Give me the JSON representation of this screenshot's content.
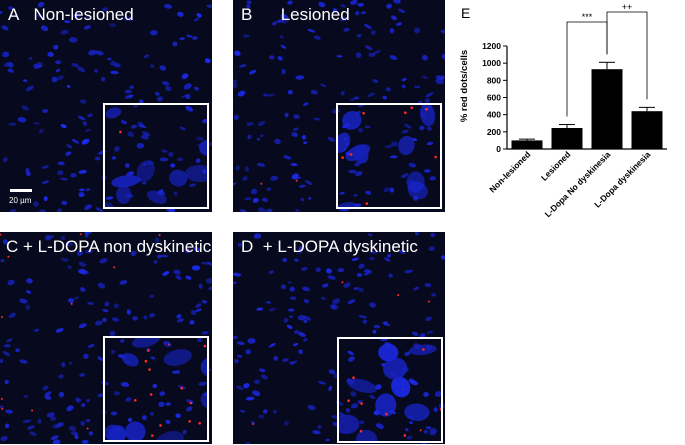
{
  "panels": [
    {
      "letter": "A",
      "title": "Non-lesioned"
    },
    {
      "letter": "B",
      "title": "Lesioned"
    },
    {
      "letter": "C",
      "title": "+ L-DOPA non dyskinetic"
    },
    {
      "letter": "D",
      "title": "+ L-DOPA dyskinetic"
    }
  ],
  "scale_bar": "20 µm",
  "chart_data": {
    "type": "bar",
    "panel_letter": "E",
    "categories": [
      "Non-lesioned",
      "Lesioned",
      "L-Dopa No dyskinesia",
      "L-Dopa dyskinesia"
    ],
    "values": [
      100,
      245,
      930,
      440
    ],
    "errors": [
      15,
      40,
      80,
      45
    ],
    "ylabel": "% red dots/cells",
    "ylim": [
      0,
      1200
    ],
    "yticks": [
      0,
      200,
      400,
      600,
      800,
      1000,
      1200
    ],
    "bar_color": "#000000",
    "significance": [
      {
        "from": 1,
        "to": 2,
        "label": "***"
      },
      {
        "from": 2,
        "to": 3,
        "label": "++"
      }
    ]
  }
}
